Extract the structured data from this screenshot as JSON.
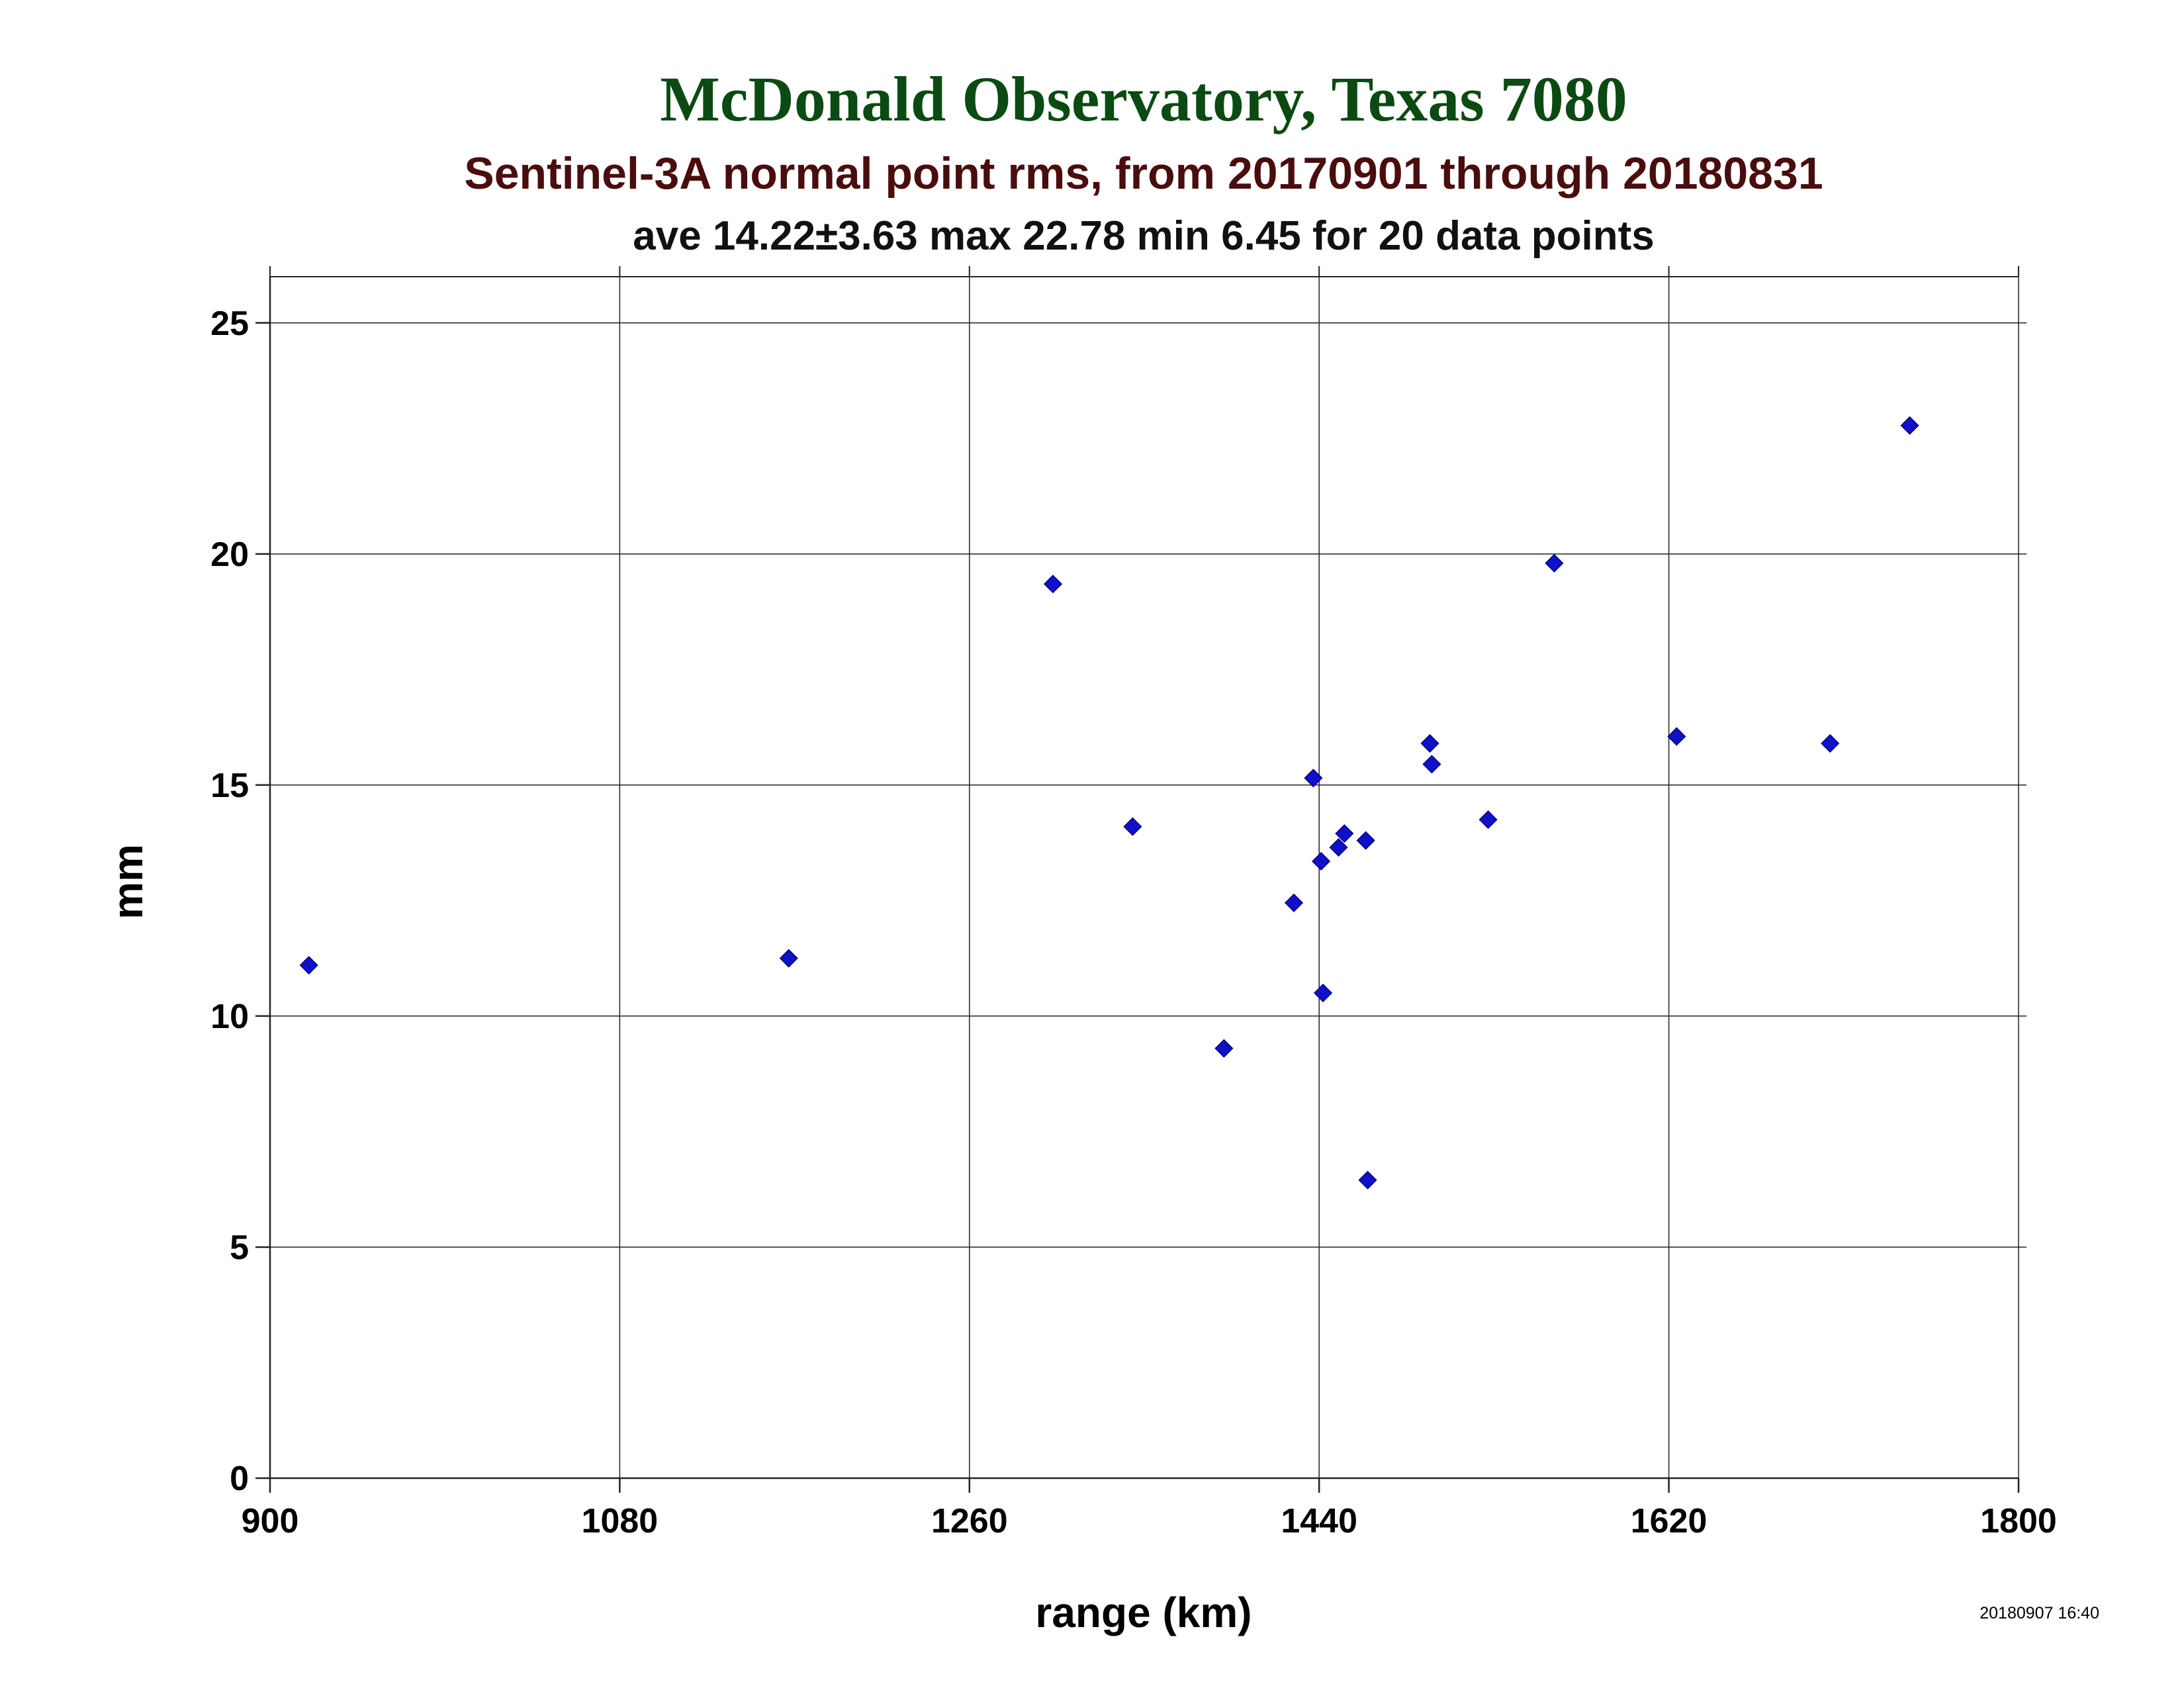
{
  "colors": {
    "title": "#0b4a12",
    "subtitle": "#4a0d0d",
    "stats": "#111111",
    "marker": "#1010c8",
    "marker_stroke": "#000080",
    "grid": "#222222"
  },
  "chart_data": {
    "type": "scatter",
    "title": "McDonald Observatory, Texas 7080",
    "subtitle": "Sentinel-3A normal point rms, from 20170901 through 20180831",
    "stats": "ave 14.22±3.63 max 22.78 min 6.45 for 20 data points",
    "xlabel": "range (km)",
    "ylabel": "mm",
    "timestamp": "20180907 16:40",
    "xlim": [
      900,
      1800
    ],
    "ylim": [
      0,
      26
    ],
    "grid": true,
    "marker": "diamond",
    "x_ticks": [
      "900",
      "1080",
      "1260",
      "1440",
      "1620",
      "1800"
    ],
    "y_ticks": [
      "0",
      "5",
      "10",
      "15",
      "20",
      "25"
    ],
    "series": [
      {
        "points": [
          {
            "x": 920,
            "y": 11.1
          },
          {
            "x": 1167,
            "y": 11.25
          },
          {
            "x": 1303,
            "y": 19.35
          },
          {
            "x": 1344,
            "y": 14.1
          },
          {
            "x": 1391,
            "y": 9.3
          },
          {
            "x": 1427,
            "y": 12.45
          },
          {
            "x": 1437,
            "y": 15.15
          },
          {
            "x": 1441,
            "y": 13.35
          },
          {
            "x": 1442,
            "y": 10.5
          },
          {
            "x": 1450,
            "y": 13.65
          },
          {
            "x": 1453,
            "y": 13.95
          },
          {
            "x": 1464,
            "y": 13.8
          },
          {
            "x": 1465,
            "y": 6.45
          },
          {
            "x": 1497,
            "y": 15.9
          },
          {
            "x": 1498,
            "y": 15.45
          },
          {
            "x": 1527,
            "y": 14.25
          },
          {
            "x": 1561,
            "y": 19.8
          },
          {
            "x": 1624,
            "y": 16.05
          },
          {
            "x": 1703,
            "y": 15.9
          },
          {
            "x": 1744,
            "y": 22.78
          }
        ]
      }
    ]
  }
}
